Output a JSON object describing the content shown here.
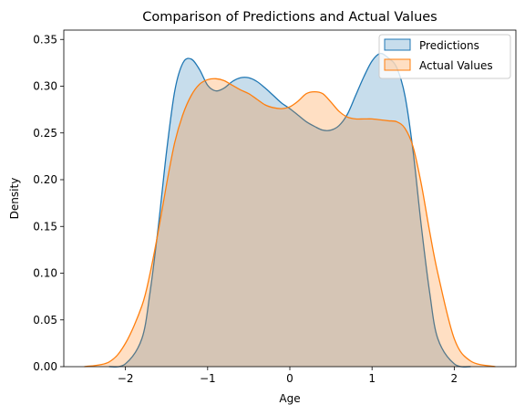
{
  "chart_data": {
    "type": "area",
    "title": "Comparison of Predictions and Actual Values",
    "xlabel": "Age",
    "ylabel": "Density",
    "xlim": [
      -2.75,
      2.75
    ],
    "ylim": [
      0,
      0.36
    ],
    "x_ticks": [
      "−2",
      "−1",
      "0",
      "1",
      "2"
    ],
    "x_tick_values": [
      -2,
      -1,
      0,
      1,
      2
    ],
    "y_ticks": [
      "0.00",
      "0.05",
      "0.10",
      "0.15",
      "0.20",
      "0.25",
      "0.30",
      "0.35"
    ],
    "y_tick_values": [
      0,
      0.05,
      0.1,
      0.15,
      0.2,
      0.25,
      0.3,
      0.35
    ],
    "grid": false,
    "legend_position": "top-right",
    "series": [
      {
        "name": "Predictions",
        "color": "#1f77b4",
        "x": [
          -2.2,
          -2.0,
          -1.8,
          -1.7,
          -1.6,
          -1.5,
          -1.4,
          -1.3,
          -1.2,
          -1.1,
          -1.0,
          -0.9,
          -0.8,
          -0.7,
          -0.6,
          -0.5,
          -0.4,
          -0.3,
          -0.2,
          -0.1,
          0.0,
          0.1,
          0.2,
          0.3,
          0.4,
          0.5,
          0.6,
          0.7,
          0.8,
          0.9,
          1.0,
          1.1,
          1.2,
          1.3,
          1.4,
          1.5,
          1.6,
          1.7,
          1.8,
          2.0,
          2.2
        ],
        "y": [
          0.0,
          0.003,
          0.03,
          0.08,
          0.15,
          0.23,
          0.295,
          0.325,
          0.329,
          0.318,
          0.301,
          0.295,
          0.298,
          0.305,
          0.309,
          0.309,
          0.305,
          0.298,
          0.29,
          0.282,
          0.276,
          0.269,
          0.262,
          0.257,
          0.253,
          0.253,
          0.258,
          0.27,
          0.29,
          0.31,
          0.327,
          0.335,
          0.33,
          0.32,
          0.29,
          0.23,
          0.15,
          0.08,
          0.03,
          0.003,
          0.0
        ]
      },
      {
        "name": "Actual Values",
        "color": "#ff7f0e",
        "x": [
          -2.5,
          -2.2,
          -2.0,
          -1.8,
          -1.7,
          -1.6,
          -1.5,
          -1.4,
          -1.3,
          -1.2,
          -1.1,
          -1.0,
          -0.9,
          -0.8,
          -0.7,
          -0.6,
          -0.5,
          -0.4,
          -0.3,
          -0.2,
          -0.1,
          0.0,
          0.1,
          0.2,
          0.3,
          0.4,
          0.5,
          0.6,
          0.7,
          0.8,
          0.9,
          1.0,
          1.1,
          1.2,
          1.3,
          1.4,
          1.5,
          1.6,
          1.7,
          1.8,
          2.0,
          2.2,
          2.5
        ],
        "y": [
          0.0,
          0.005,
          0.025,
          0.065,
          0.1,
          0.145,
          0.195,
          0.24,
          0.27,
          0.29,
          0.302,
          0.307,
          0.308,
          0.306,
          0.301,
          0.296,
          0.292,
          0.286,
          0.28,
          0.277,
          0.276,
          0.278,
          0.284,
          0.292,
          0.294,
          0.292,
          0.283,
          0.273,
          0.267,
          0.265,
          0.265,
          0.265,
          0.264,
          0.263,
          0.262,
          0.255,
          0.235,
          0.195,
          0.145,
          0.1,
          0.03,
          0.006,
          0.0
        ]
      }
    ]
  }
}
